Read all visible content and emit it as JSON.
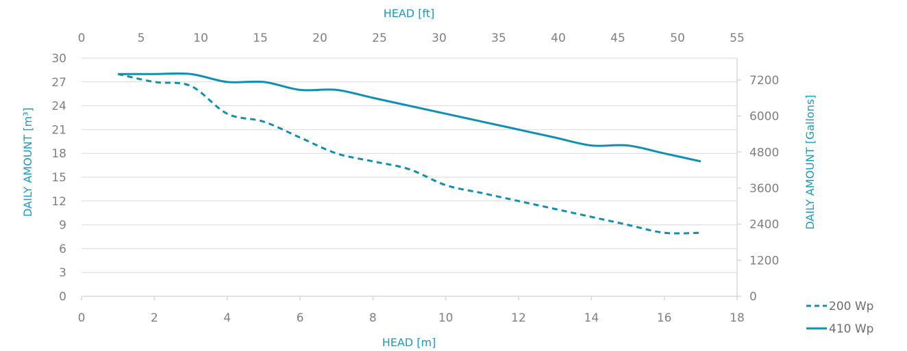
{
  "colors": {
    "series": "#0e8fb4",
    "axis_title": "#1a9bc2",
    "grid": "#d9d9d9",
    "tick": "#808080"
  },
  "chart_data": {
    "type": "line",
    "title": "",
    "xlabel": "HEAD [m]",
    "ylabel": "DAILY AMOUNT [m³]",
    "x2label": "HEAD [ft]",
    "y2label": "DAILY AMOUNT [Gallons]",
    "xlim": [
      0,
      18
    ],
    "ylim": [
      0,
      30
    ],
    "x2lim": [
      0,
      55
    ],
    "y2lim": [
      0,
      7926
    ],
    "x_ticks": [
      0,
      2,
      4,
      6,
      8,
      10,
      12,
      14,
      16,
      18
    ],
    "y_ticks": [
      0,
      3,
      6,
      9,
      12,
      15,
      18,
      21,
      24,
      27,
      30
    ],
    "x2_ticks": [
      0,
      5,
      10,
      15,
      20,
      25,
      30,
      35,
      40,
      45,
      50,
      55
    ],
    "y2_ticks": [
      0,
      1200,
      2400,
      3600,
      4800,
      6000,
      7200
    ],
    "grid": "horizontal",
    "legend_position": "bottom-right",
    "series": [
      {
        "name": "200 Wp",
        "style": "dashed",
        "x": [
          1,
          2,
          3,
          4,
          5,
          6,
          7,
          8,
          9,
          10,
          11,
          12,
          13,
          14,
          15,
          16,
          17
        ],
        "y": [
          28,
          27,
          26.5,
          23,
          22,
          20,
          18,
          17,
          16,
          14,
          13,
          12,
          11,
          10,
          9,
          8,
          8
        ]
      },
      {
        "name": "410 Wp",
        "style": "solid",
        "x": [
          1,
          2,
          3,
          4,
          5,
          6,
          7,
          8,
          9,
          10,
          11,
          12,
          13,
          14,
          15,
          16,
          17
        ],
        "y": [
          28,
          28,
          28,
          27,
          27,
          26,
          26,
          25,
          24,
          23,
          22,
          21,
          20,
          19,
          19,
          18,
          17
        ]
      }
    ]
  }
}
